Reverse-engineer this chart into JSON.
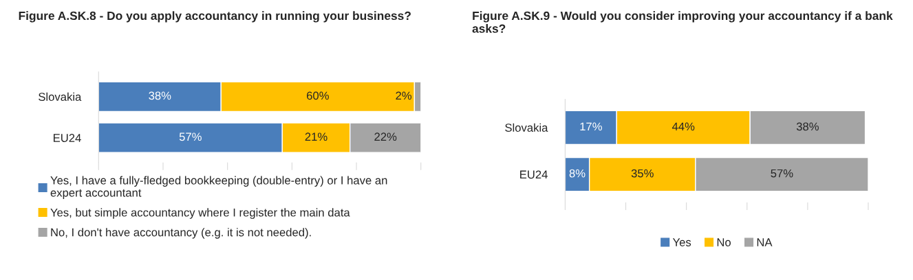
{
  "chart_data": [
    {
      "type": "bar",
      "orientation": "horizontal",
      "stacked": true,
      "title": "Figure A.SK.8 - Do you apply accountancy in running your business?",
      "categories": [
        "Slovakia",
        "EU24"
      ],
      "series": [
        {
          "name": "Yes, I have a fully-fledged bookkeeping (double-entry) or I have an expert accountant",
          "color": "#4a7ebb",
          "values": [
            38,
            57
          ],
          "value_labels": [
            "38%",
            "57%"
          ]
        },
        {
          "name": "Yes, but simple accountancy where I register the main data",
          "color": "#ffc000",
          "values": [
            60,
            21
          ],
          "value_labels": [
            "60%",
            "21%"
          ]
        },
        {
          "name": "No, I don't have accountancy (e.g. it is not needed).",
          "color": "#a5a5a5",
          "values": [
            2,
            22
          ],
          "value_labels": [
            "2%",
            "22%"
          ]
        }
      ],
      "tick_labels": "y",
      "legend": "bottom left"
    },
    {
      "type": "bar",
      "orientation": "horizontal",
      "stacked": true,
      "title": "Figure A.SK.9 - Would you consider improving your accountancy if a bank asks?",
      "categories": [
        "Slovakia",
        "EU24"
      ],
      "series": [
        {
          "name": "Yes",
          "color": "#4a7ebb",
          "values": [
            17,
            8
          ],
          "value_labels": [
            "17%",
            "8%"
          ]
        },
        {
          "name": "No",
          "color": "#ffc000",
          "values": [
            44,
            35
          ],
          "value_labels": [
            "44%",
            "35%"
          ]
        },
        {
          "name": "NA",
          "color": "#a5a5a5",
          "values": [
            38,
            57
          ],
          "value_labels": [
            "38%",
            "57%"
          ]
        }
      ],
      "tick_labels": "y",
      "legend": "bottom"
    }
  ]
}
